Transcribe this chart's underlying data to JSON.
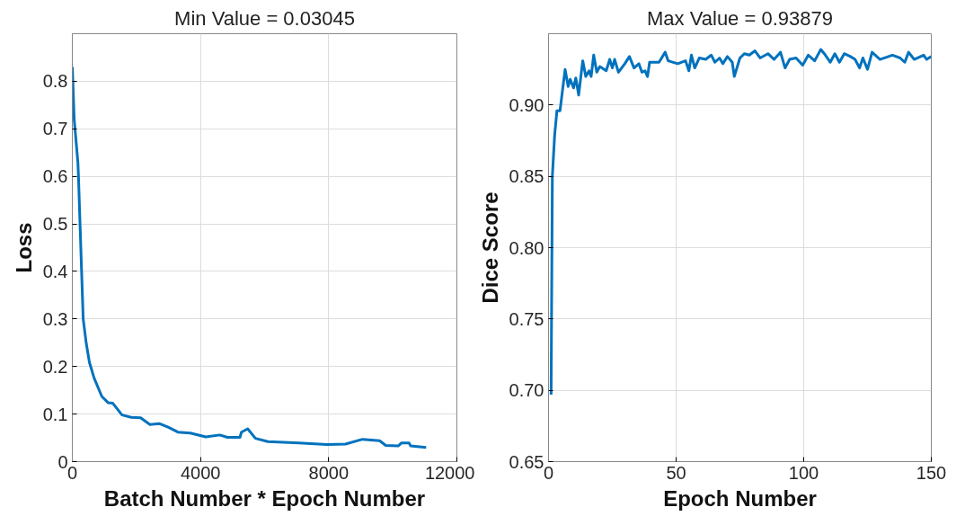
{
  "chart_data": [
    {
      "type": "line",
      "title": "Min Value = 0.03045",
      "xlabel": "Batch Number * Epoch Number",
      "ylabel": "Loss",
      "grid": true,
      "xlim": [
        0,
        12000
      ],
      "xticks": [
        0,
        4000,
        8000,
        12000
      ],
      "ylim": [
        0,
        0.9
      ],
      "yticks": [
        0,
        0.1,
        0.2,
        0.3,
        0.4,
        0.5,
        0.6,
        0.7,
        0.8
      ],
      "series": [
        {
          "color": "#0072bd",
          "x": [
            0,
            58,
            175,
            194,
            242,
            290,
            339,
            436,
            533,
            678,
            920,
            1114,
            1259,
            1550,
            1840,
            2131,
            2421,
            2712,
            3002,
            3293,
            3680,
            4165,
            4600,
            4843,
            5230,
            5278,
            5472,
            5714,
            6101,
            7070,
            7942,
            8523,
            9056,
            9588,
            9782,
            10169,
            10266,
            10508,
            10557,
            11041
          ],
          "values": [
            0.83,
            0.72,
            0.628,
            0.595,
            0.497,
            0.399,
            0.3,
            0.248,
            0.209,
            0.176,
            0.137,
            0.124,
            0.123,
            0.098,
            0.093,
            0.092,
            0.078,
            0.08,
            0.072,
            0.062,
            0.06,
            0.052,
            0.056,
            0.051,
            0.051,
            0.062,
            0.069,
            0.049,
            0.042,
            0.039,
            0.036,
            0.037,
            0.047,
            0.044,
            0.034,
            0.033,
            0.039,
            0.039,
            0.033,
            0.03
          ]
        }
      ]
    },
    {
      "type": "line",
      "title": "Max Value = 0.93879",
      "xlabel": "Epoch Number",
      "ylabel": "Dice Score",
      "grid": true,
      "xlim": [
        0,
        150
      ],
      "xticks": [
        0,
        50,
        100,
        150
      ],
      "ylim": [
        0.65,
        0.95
      ],
      "yticks": [
        0.65,
        {
          "value": 0.7,
          "label": "0.70"
        },
        0.75,
        {
          "value": 0.8,
          "label": "0.80"
        },
        0.85,
        {
          "value": 0.9,
          "label": "0.90"
        }
      ],
      "series": [
        {
          "color": "#0072bd",
          "x": [
            1,
            1.5,
            2.4,
            3.3,
            4.5,
            6.5,
            7.7,
            8.5,
            9.8,
            10.7,
            11.8,
            13.4,
            14.6,
            15.9,
            16.7,
            17.7,
            18.9,
            20.1,
            22.6,
            24,
            25,
            25.9,
            27.4,
            29.9,
            31.7,
            33.5,
            35.4,
            36.6,
            37.8,
            38.8,
            39.6,
            43.3,
            45.7,
            46.9,
            50.6,
            53.7,
            55,
            56,
            57.3,
            59.1,
            61.6,
            63.8,
            65.2,
            67,
            68.3,
            70.1,
            72,
            72.8,
            75,
            76.8,
            78.7,
            80.9,
            82.9,
            86,
            88.4,
            90.9,
            92.7,
            94.5,
            97,
            99.6,
            101.8,
            104.3,
            106.7,
            108.5,
            110.4,
            112.2,
            114,
            115.9,
            118.3,
            120.1,
            121.9,
            123.2,
            125,
            126.8,
            129.9,
            134.8,
            137.8,
            139.6,
            141.1,
            143.3,
            147,
            148.2,
            150
          ],
          "values": [
            0.697,
            0.85,
            0.879,
            0.896,
            0.896,
            0.925,
            0.913,
            0.918,
            0.912,
            0.919,
            0.907,
            0.931,
            0.92,
            0.924,
            0.92,
            0.935,
            0.923,
            0.927,
            0.924,
            0.932,
            0.926,
            0.932,
            0.923,
            0.929,
            0.934,
            0.926,
            0.929,
            0.923,
            0.924,
            0.92,
            0.93,
            0.93,
            0.937,
            0.931,
            0.929,
            0.931,
            0.924,
            0.935,
            0.926,
            0.933,
            0.932,
            0.935,
            0.93,
            0.933,
            0.929,
            0.934,
            0.93,
            0.92,
            0.933,
            0.936,
            0.935,
            0.938,
            0.933,
            0.936,
            0.932,
            0.937,
            0.926,
            0.932,
            0.933,
            0.928,
            0.935,
            0.931,
            0.939,
            0.935,
            0.93,
            0.936,
            0.93,
            0.936,
            0.934,
            0.932,
            0.926,
            0.933,
            0.925,
            0.937,
            0.932,
            0.935,
            0.933,
            0.93,
            0.937,
            0.932,
            0.935,
            0.932,
            0.934
          ]
        }
      ]
    }
  ]
}
